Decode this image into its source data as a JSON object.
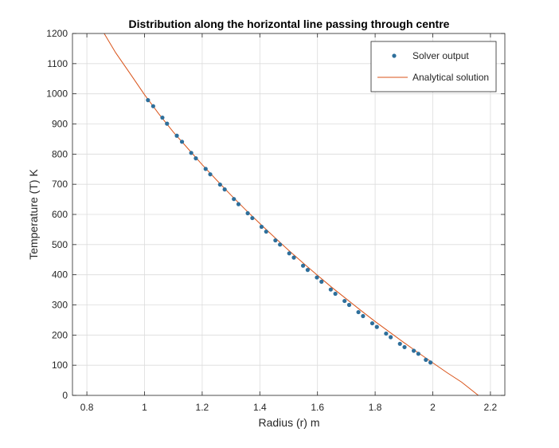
{
  "chart_data": {
    "type": "line",
    "title": "Distribution along the horizontal line passing through centre",
    "xlabel": "Radius (r) m",
    "ylabel": "Temperature (T) K",
    "xlim": [
      0.75,
      2.25
    ],
    "ylim": [
      0,
      1200
    ],
    "xticks": [
      0.8,
      1.0,
      1.2,
      1.4,
      1.6,
      1.8,
      2.0,
      2.2
    ],
    "xtick_labels": [
      "0.8",
      "1",
      "1.2",
      "1.4",
      "1.6",
      "1.8",
      "2",
      "2.2"
    ],
    "yticks": [
      0,
      100,
      200,
      300,
      400,
      500,
      600,
      700,
      800,
      900,
      1000,
      1100,
      1200
    ],
    "ytick_labels": [
      "0",
      "100",
      "200",
      "300",
      "400",
      "500",
      "600",
      "700",
      "800",
      "900",
      "1000",
      "1100",
      "1200"
    ],
    "grid": true,
    "legend_position": "top-right",
    "series": [
      {
        "name": "Solver output",
        "style": "markers",
        "color": "#2e6f9b",
        "x": [
          1.012,
          1.03,
          1.062,
          1.078,
          1.112,
          1.13,
          1.162,
          1.178,
          1.212,
          1.228,
          1.262,
          1.278,
          1.31,
          1.326,
          1.358,
          1.374,
          1.406,
          1.422,
          1.454,
          1.47,
          1.502,
          1.518,
          1.55,
          1.566,
          1.598,
          1.614,
          1.646,
          1.662,
          1.694,
          1.71,
          1.742,
          1.758,
          1.79,
          1.806,
          1.838,
          1.854,
          1.886,
          1.902,
          1.934,
          1.95,
          1.976,
          1.992
        ],
        "y": [
          979,
          959,
          921,
          901,
          861,
          841,
          804,
          786,
          751,
          733,
          699,
          683,
          651,
          634,
          604,
          588,
          559,
          543,
          514,
          500,
          471,
          457,
          430,
          416,
          391,
          377,
          351,
          337,
          313,
          300,
          276,
          263,
          239,
          227,
          205,
          193,
          171,
          160,
          148,
          138,
          118,
          109
        ]
      },
      {
        "name": "Analytical solution",
        "style": "line",
        "color": "#d95319",
        "x": [
          0.86,
          0.9,
          0.95,
          1.0,
          1.05,
          1.1,
          1.15,
          1.2,
          1.25,
          1.3,
          1.35,
          1.4,
          1.45,
          1.5,
          1.55,
          1.6,
          1.65,
          1.7,
          1.75,
          1.8,
          1.85,
          1.9,
          1.95,
          2.0,
          2.05,
          2.1,
          2.158
        ],
        "y": [
          1200,
          1136,
          1067,
          997,
          933,
          873,
          819,
          765,
          714,
          664,
          616,
          570,
          525,
          481,
          439,
          398,
          358,
          320,
          282,
          245,
          210,
          175,
          141,
          108,
          75,
          44,
          0
        ]
      }
    ]
  }
}
